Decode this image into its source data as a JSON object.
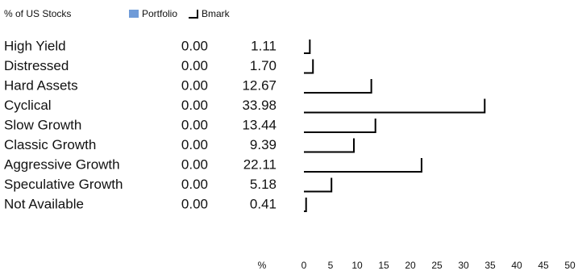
{
  "chart_data": {
    "type": "bar",
    "header": "% of US Stocks",
    "xlabel": "%",
    "categories": [
      "High Yield",
      "Distressed",
      "Hard Assets",
      "Cyclical",
      "Slow Growth",
      "Classic Growth",
      "Aggressive Growth",
      "Speculative Growth",
      "Not Available"
    ],
    "series": [
      {
        "name": "Portfolio",
        "color": "#6f9bd8",
        "values": [
          0,
          0,
          0,
          0,
          0,
          0,
          0,
          0,
          0
        ],
        "value_labels": [
          "0.00",
          "0.00",
          "0.00",
          "0.00",
          "0.00",
          "0.00",
          "0.00",
          "0.00",
          "0.00"
        ]
      },
      {
        "name": "Bmark",
        "color": "#000000",
        "values": [
          1.11,
          1.7,
          12.67,
          33.98,
          13.44,
          9.39,
          22.11,
          5.18,
          0.41
        ],
        "value_labels": [
          "1.11",
          "1.70",
          "12.67",
          "33.98",
          "13.44",
          "9.39",
          "22.11",
          "5.18",
          "0.41"
        ]
      }
    ],
    "xlim": [
      0,
      50
    ],
    "xticks": [
      0,
      5,
      10,
      15,
      20,
      25,
      30,
      35,
      40,
      45,
      50
    ]
  }
}
